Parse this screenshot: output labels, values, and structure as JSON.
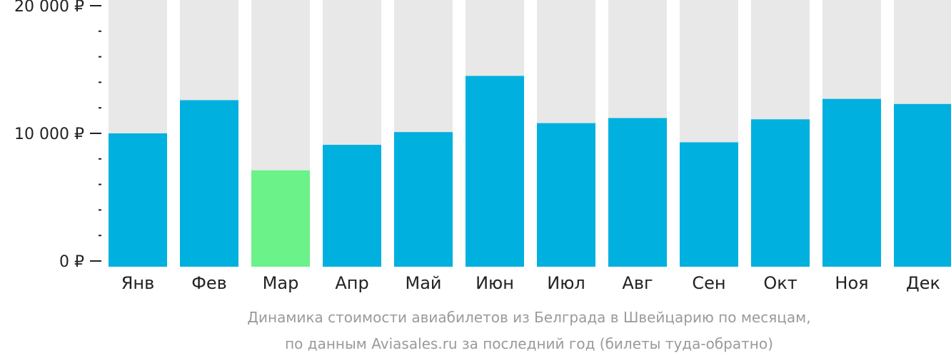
{
  "chart_data": {
    "type": "bar",
    "categories": [
      "Янв",
      "Фев",
      "Мар",
      "Апр",
      "Май",
      "Июн",
      "Июл",
      "Авг",
      "Сен",
      "Окт",
      "Ноя",
      "Дек"
    ],
    "values": [
      10000,
      12600,
      7100,
      9100,
      10100,
      14500,
      10800,
      11200,
      9300,
      11100,
      12700,
      12300
    ],
    "ylim": [
      0,
      20000
    ],
    "y_ticks": [
      {
        "value": 0,
        "label": "0 ₽"
      },
      {
        "value": 10000,
        "label": "10 000 ₽"
      },
      {
        "value": 20000,
        "label": "20 000 ₽"
      }
    ],
    "minor_tick_step": 2000,
    "highlight_index": 2,
    "colors": {
      "bar": "#00b0de",
      "highlight": "#6bf288",
      "background": "#e8e8e8",
      "axis": "#222222"
    },
    "caption_lines": [
      "Динамика стоимости авиабилетов из Белграда в Швейцарию по месяцам,",
      "по данным Aviasales.ru за последний год (билеты туда-обратно)"
    ]
  }
}
